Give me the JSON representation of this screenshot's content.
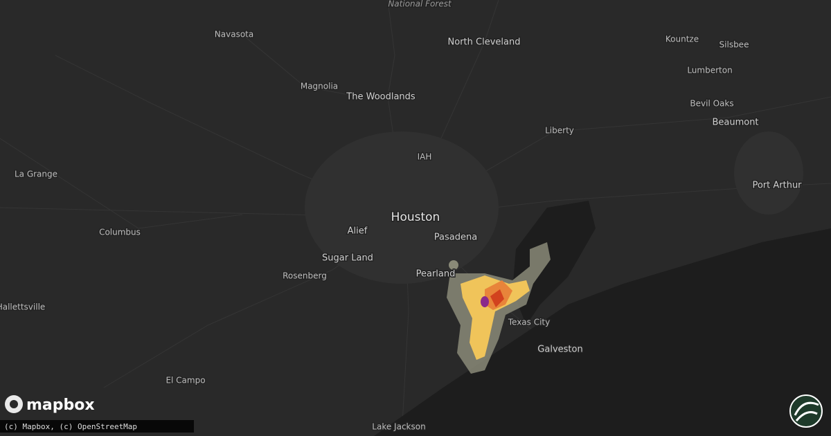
{
  "map": {
    "places": [
      "National Forest",
      "North Cleveland",
      "Navasota",
      "Kountze",
      "Silsbee",
      "Lumberton",
      "Magnolia",
      "The Woodlands",
      "Bevil Oaks",
      "Beaumont",
      "Liberty",
      "IAH",
      "La Grange",
      "Port Arthur",
      "Houston",
      "Columbus",
      "Alief",
      "Pasadena",
      "Sugar Land",
      "Rosenberg",
      "Pearland",
      "Hallettsville",
      "Texas City",
      "Galveston",
      "El Campo",
      "Lake Jackson"
    ]
  },
  "logo": "mapbox",
  "attribution": "(c) Mapbox, (c) OpenStreetMap"
}
